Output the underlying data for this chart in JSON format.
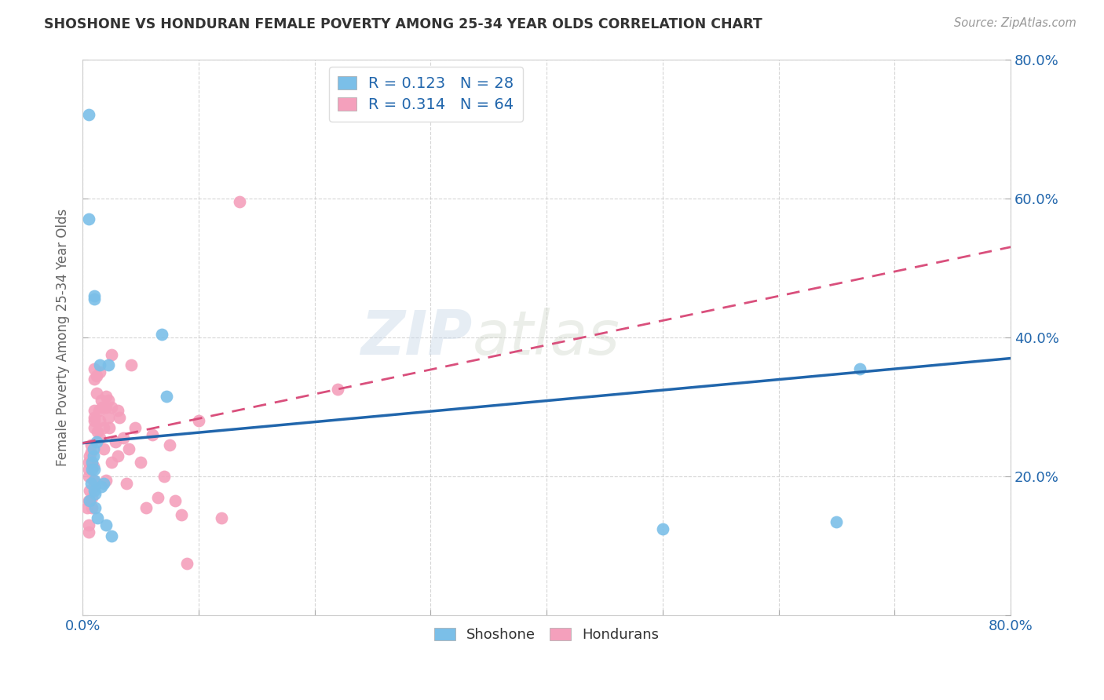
{
  "title": "SHOSHONE VS HONDURAN FEMALE POVERTY AMONG 25-34 YEAR OLDS CORRELATION CHART",
  "source": "Source: ZipAtlas.com",
  "ylabel": "Female Poverty Among 25-34 Year Olds",
  "xlim": [
    0,
    0.8
  ],
  "ylim": [
    0,
    0.8
  ],
  "xticks": [
    0.0,
    0.1,
    0.2,
    0.3,
    0.4,
    0.5,
    0.6,
    0.7,
    0.8
  ],
  "yticks": [
    0.0,
    0.2,
    0.4,
    0.6,
    0.8
  ],
  "shoshone_color": "#7bbfe8",
  "honduran_color": "#f4a0bc",
  "shoshone_line_color": "#2166ac",
  "honduran_line_color": "#d94f7c",
  "R_shoshone": 0.123,
  "N_shoshone": 28,
  "R_honduran": 0.314,
  "N_honduran": 64,
  "background_color": "#ffffff",
  "grid_color": "#cccccc",
  "shoshone_x": [
    0.005,
    0.005,
    0.006,
    0.007,
    0.008,
    0.008,
    0.009,
    0.009,
    0.01,
    0.01,
    0.01,
    0.01,
    0.01,
    0.011,
    0.011,
    0.012,
    0.013,
    0.015,
    0.016,
    0.018,
    0.02,
    0.022,
    0.025,
    0.068,
    0.072,
    0.65,
    0.67,
    0.5
  ],
  "shoshone_y": [
    0.72,
    0.57,
    0.165,
    0.19,
    0.22,
    0.21,
    0.24,
    0.23,
    0.46,
    0.455,
    0.21,
    0.195,
    0.18,
    0.175,
    0.155,
    0.25,
    0.14,
    0.36,
    0.185,
    0.19,
    0.13,
    0.36,
    0.115,
    0.405,
    0.315,
    0.135,
    0.355,
    0.125
  ],
  "honduran_x": [
    0.004,
    0.005,
    0.005,
    0.005,
    0.005,
    0.005,
    0.005,
    0.006,
    0.006,
    0.007,
    0.007,
    0.008,
    0.008,
    0.009,
    0.009,
    0.01,
    0.01,
    0.01,
    0.01,
    0.01,
    0.01,
    0.01,
    0.012,
    0.012,
    0.013,
    0.014,
    0.015,
    0.015,
    0.015,
    0.016,
    0.017,
    0.018,
    0.018,
    0.02,
    0.02,
    0.02,
    0.022,
    0.022,
    0.023,
    0.025,
    0.025,
    0.025,
    0.028,
    0.03,
    0.03,
    0.032,
    0.035,
    0.038,
    0.04,
    0.042,
    0.045,
    0.05,
    0.055,
    0.06,
    0.065,
    0.07,
    0.075,
    0.08,
    0.085,
    0.09,
    0.1,
    0.12,
    0.135,
    0.22
  ],
  "honduran_y": [
    0.155,
    0.2,
    0.21,
    0.22,
    0.13,
    0.12,
    0.165,
    0.23,
    0.18,
    0.245,
    0.235,
    0.17,
    0.155,
    0.215,
    0.195,
    0.355,
    0.34,
    0.295,
    0.285,
    0.28,
    0.27,
    0.185,
    0.345,
    0.32,
    0.265,
    0.295,
    0.35,
    0.28,
    0.255,
    0.31,
    0.3,
    0.27,
    0.24,
    0.315,
    0.3,
    0.195,
    0.31,
    0.285,
    0.27,
    0.375,
    0.3,
    0.22,
    0.25,
    0.295,
    0.23,
    0.285,
    0.255,
    0.19,
    0.24,
    0.36,
    0.27,
    0.22,
    0.155,
    0.26,
    0.17,
    0.2,
    0.245,
    0.165,
    0.145,
    0.075,
    0.28,
    0.14,
    0.595,
    0.325
  ],
  "shoshone_trend_x0": 0.0,
  "shoshone_trend_y0": 0.248,
  "shoshone_trend_x1": 0.8,
  "shoshone_trend_y1": 0.37,
  "honduran_trend_x0": 0.0,
  "honduran_trend_y0": 0.248,
  "honduran_trend_x1": 0.8,
  "honduran_trend_y1": 0.53
}
